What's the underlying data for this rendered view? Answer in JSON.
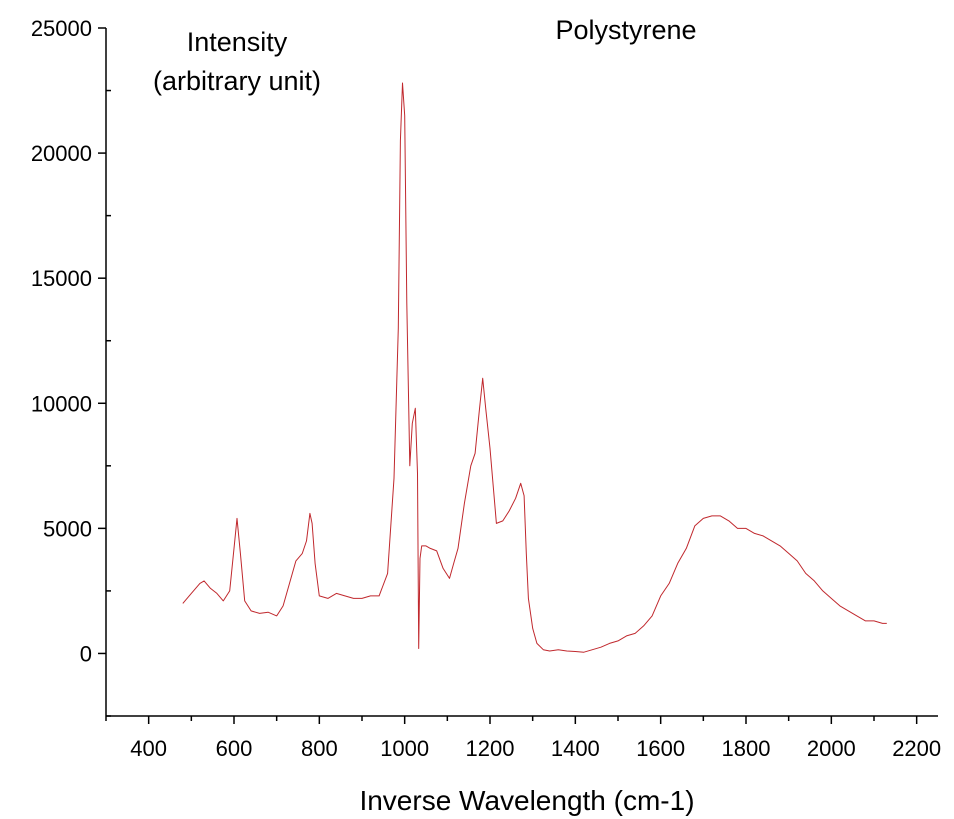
{
  "chart_data": {
    "type": "line",
    "title": "",
    "annotations": [
      "Intensity",
      "(arbitrary unit)",
      "Polystyrene"
    ],
    "xlabel": "Inverse Wavelength (cm-1)",
    "ylabel": "",
    "xlim": [
      300,
      2250
    ],
    "ylim": [
      -2500,
      25000
    ],
    "x_ticks": [
      400,
      600,
      800,
      1000,
      1200,
      1400,
      1600,
      1800,
      2000,
      2200
    ],
    "x_tick_labels": [
      "400",
      "600",
      "800",
      "1000",
      "1200",
      "1400",
      "1600",
      "1800",
      "2000",
      "2200"
    ],
    "y_ticks": [
      0,
      5000,
      10000,
      15000,
      20000,
      25000
    ],
    "y_tick_labels": [
      "0",
      "5000",
      "10000",
      "15000",
      "20000",
      "25000"
    ],
    "grid": false,
    "line_color": "#c0282d",
    "series": [
      {
        "x": [
          480,
          500,
          520,
          530,
          545,
          560,
          575,
          590,
          600,
          607,
          615,
          625,
          640,
          660,
          680,
          700,
          715,
          730,
          745,
          760,
          770,
          778,
          783,
          790,
          800,
          820,
          840,
          860,
          880,
          900,
          920,
          940,
          960,
          975,
          985,
          990,
          995,
          1000,
          1005,
          1012,
          1018,
          1025,
          1030,
          1033,
          1036,
          1040,
          1050,
          1060,
          1075,
          1090,
          1105,
          1115,
          1125,
          1140,
          1155,
          1165,
          1175,
          1183,
          1190,
          1200,
          1215,
          1230,
          1245,
          1260,
          1272,
          1280,
          1285,
          1290,
          1300,
          1310,
          1325,
          1340,
          1360,
          1380,
          1400,
          1420,
          1440,
          1460,
          1480,
          1500,
          1520,
          1540,
          1560,
          1580,
          1600,
          1620,
          1640,
          1660,
          1680,
          1700,
          1720,
          1740,
          1760,
          1780,
          1800,
          1820,
          1840,
          1860,
          1880,
          1900,
          1920,
          1940,
          1960,
          1980,
          2000,
          2020,
          2040,
          2060,
          2080,
          2100,
          2120,
          2130
        ],
        "y": [
          2000,
          2400,
          2800,
          2900,
          2600,
          2400,
          2100,
          2500,
          4200,
          5400,
          4000,
          2100,
          1700,
          1600,
          1650,
          1500,
          1900,
          2800,
          3700,
          4000,
          4500,
          5600,
          5200,
          3600,
          2300,
          2200,
          2400,
          2300,
          2200,
          2200,
          2300,
          2300,
          3200,
          7000,
          13000,
          20500,
          22800,
          21500,
          14000,
          7500,
          9200,
          9800,
          7200,
          200,
          3800,
          4300,
          4300,
          4200,
          4100,
          3400,
          3000,
          3600,
          4200,
          6000,
          7500,
          8000,
          9700,
          11000,
          9800,
          8200,
          5200,
          5300,
          5700,
          6200,
          6800,
          6300,
          4000,
          2200,
          1000,
          400,
          150,
          100,
          150,
          100,
          80,
          50,
          150,
          250,
          400,
          500,
          700,
          800,
          1100,
          1500,
          2300,
          2800,
          3600,
          4200,
          5100,
          5400,
          5500,
          5500,
          5300,
          5000,
          5000,
          4800,
          4700,
          4500,
          4300,
          4000,
          3700,
          3200,
          2900,
          2500,
          2200,
          1900,
          1700,
          1500,
          1300,
          1300,
          1200,
          1200
        ]
      }
    ]
  }
}
